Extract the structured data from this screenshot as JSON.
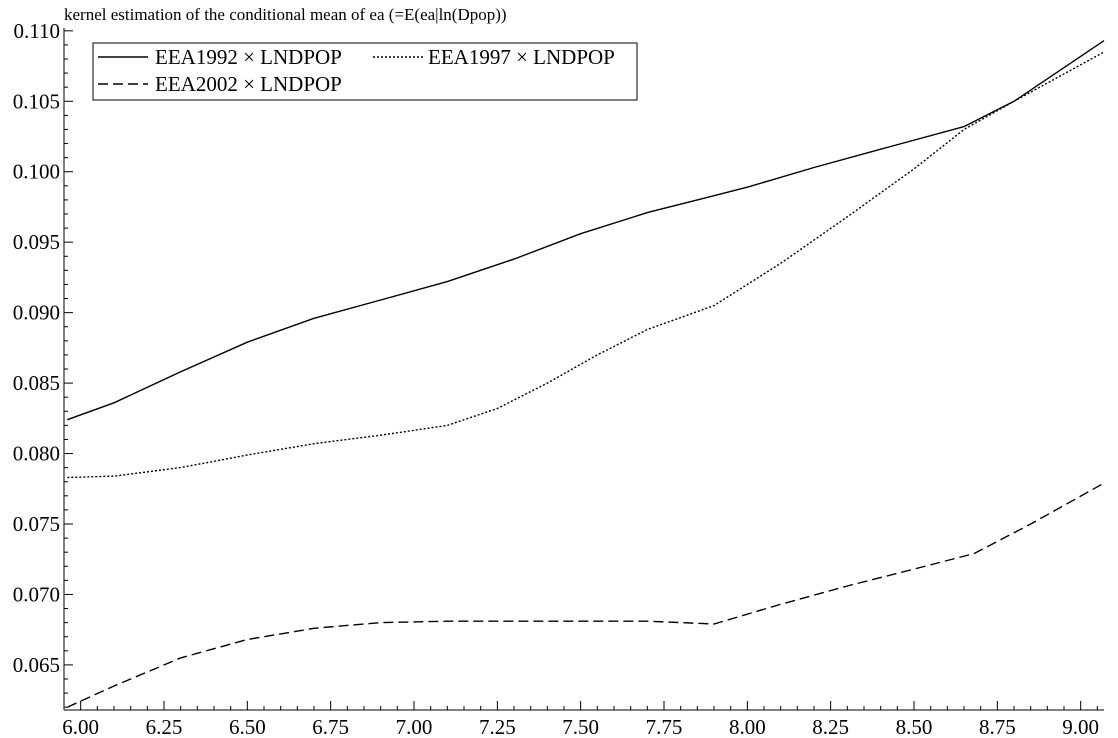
{
  "chart_data": {
    "type": "line",
    "title": "kernel estimation of the conditional mean of ea (=E(ea|ln(Dpop))",
    "xlabel": "",
    "ylabel": "",
    "xlim": [
      5.95,
      9.07
    ],
    "ylim": [
      0.0618,
      0.1102
    ],
    "x_ticks": [
      "6.00",
      "6.25",
      "6.50",
      "6.75",
      "7.00",
      "7.25",
      "7.50",
      "7.75",
      "8.00",
      "8.25",
      "8.50",
      "8.75",
      "9.00"
    ],
    "y_ticks": [
      "0.065",
      "0.070",
      "0.075",
      "0.080",
      "0.085",
      "0.090",
      "0.095",
      "0.100",
      "0.105",
      "0.110"
    ],
    "legend_position": "top-left",
    "grid": false,
    "series": [
      {
        "name": "EEA1992 × LNDPOP",
        "style": "solid",
        "x": [
          5.96,
          6.1,
          6.3,
          6.5,
          6.7,
          6.9,
          7.1,
          7.3,
          7.5,
          7.7,
          7.85,
          8.0,
          8.2,
          8.4,
          8.65,
          8.8,
          9.07
        ],
        "y": [
          0.0824,
          0.0836,
          0.0858,
          0.0879,
          0.0896,
          0.0909,
          0.0922,
          0.0938,
          0.0956,
          0.0971,
          0.098,
          0.0989,
          0.1003,
          0.1016,
          0.1032,
          0.105,
          0.1093
        ]
      },
      {
        "name": "EEA1997 × LNDPOP",
        "style": "dotted",
        "x": [
          5.96,
          6.1,
          6.3,
          6.5,
          6.7,
          6.9,
          7.1,
          7.25,
          7.4,
          7.55,
          7.7,
          7.9,
          8.1,
          8.3,
          8.5,
          8.65,
          8.8,
          9.07
        ],
        "y": [
          0.0783,
          0.0784,
          0.079,
          0.0799,
          0.0807,
          0.0813,
          0.082,
          0.0832,
          0.085,
          0.087,
          0.0888,
          0.0905,
          0.0935,
          0.0968,
          0.1002,
          0.103,
          0.105,
          0.1085
        ]
      },
      {
        "name": "EEA2002 × LNDPOP",
        "style": "dashed",
        "x": [
          5.96,
          6.1,
          6.3,
          6.5,
          6.7,
          6.9,
          7.1,
          7.3,
          7.5,
          7.7,
          7.9,
          8.1,
          8.3,
          8.5,
          8.68,
          8.85,
          9.07
        ],
        "y": [
          0.062,
          0.0635,
          0.0655,
          0.0668,
          0.0676,
          0.068,
          0.0681,
          0.0681,
          0.0681,
          0.0681,
          0.0679,
          0.0693,
          0.0706,
          0.0718,
          0.0729,
          0.075,
          0.0779
        ]
      }
    ]
  }
}
